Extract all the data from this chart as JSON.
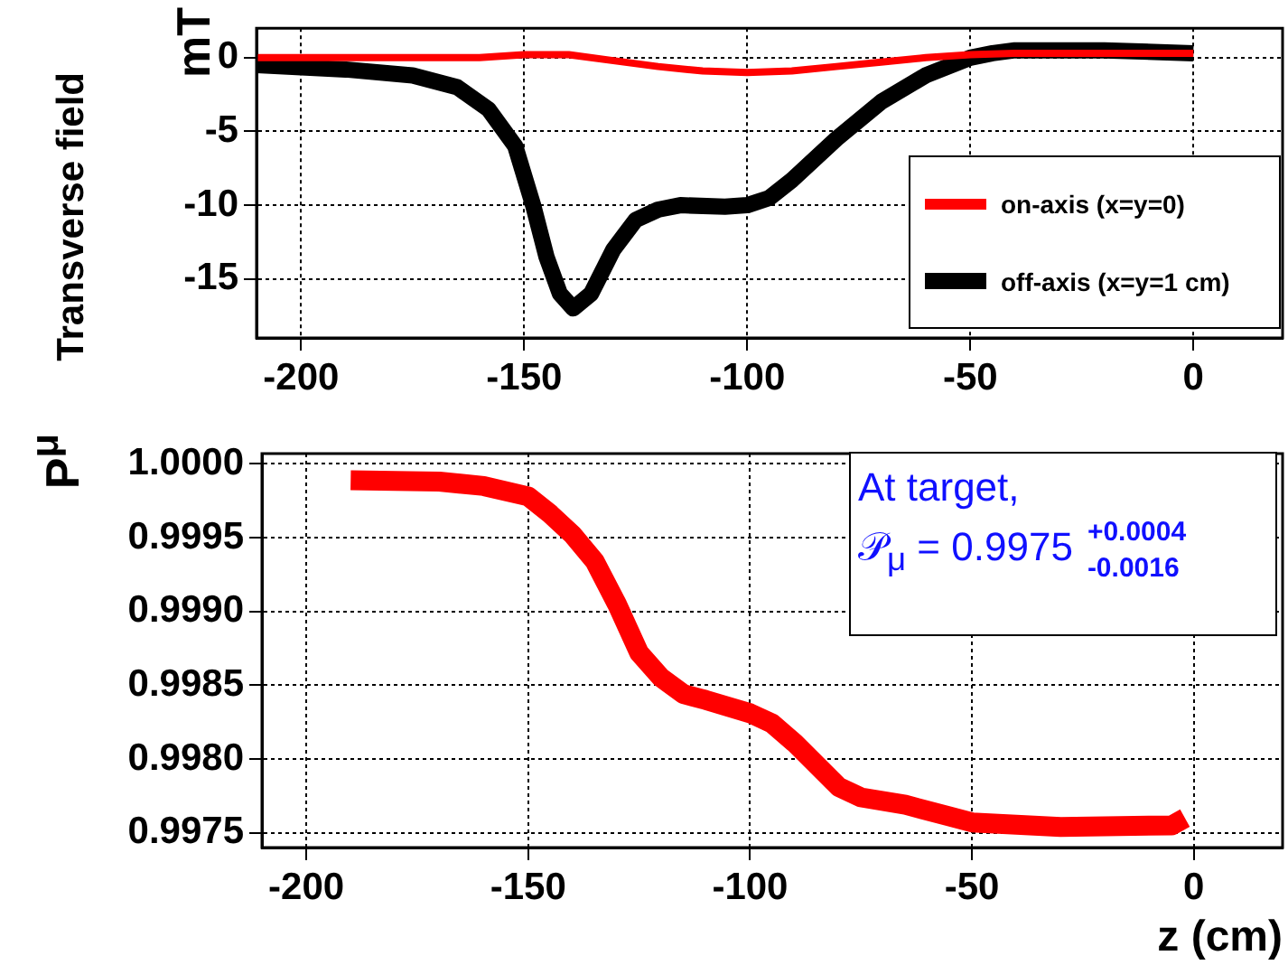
{
  "chart_data": [
    {
      "type": "line",
      "ylabel": "mT",
      "annotations": [
        "Transverse field"
      ],
      "xlim": [
        -210,
        20
      ],
      "ylim": [
        -19,
        2
      ],
      "xticks": [
        -200,
        -150,
        -100,
        -50,
        0
      ],
      "yticks": [
        0,
        -5,
        -10,
        -15
      ],
      "grid": true,
      "legend": "bottom right",
      "marker": "none",
      "line_style": "solid",
      "series": [
        {
          "name": "on-axis (x=y=0)",
          "color": "#ff0000",
          "x": [
            -210,
            -180,
            -160,
            -150,
            -140,
            -130,
            -120,
            -110,
            -100,
            -90,
            -80,
            -70,
            -60,
            -50,
            -40,
            -20,
            0
          ],
          "values": [
            0,
            0,
            0,
            0.2,
            0.2,
            -0.2,
            -0.6,
            -0.9,
            -1,
            -0.9,
            -0.6,
            -0.3,
            0,
            0.2,
            0.3,
            0.3,
            0.3
          ]
        },
        {
          "name": "off-axis (x=y=1 cm)",
          "color": "#000000",
          "x": [
            -210,
            -190,
            -175,
            -165,
            -158,
            -152,
            -148,
            -145,
            -142,
            -139,
            -135,
            -130,
            -125,
            -120,
            -115,
            -105,
            -100,
            -95,
            -90,
            -80,
            -70,
            -60,
            -50,
            -45,
            -40,
            -20,
            0
          ],
          "values": [
            -0.5,
            -0.8,
            -1.2,
            -2,
            -3.5,
            -6,
            -10,
            -13.5,
            -16,
            -17,
            -16,
            -13,
            -11,
            -10.3,
            -10,
            -10.1,
            -10,
            -9.5,
            -8.3,
            -5.5,
            -3,
            -1.2,
            0,
            0.3,
            0.5,
            0.5,
            0.3
          ]
        }
      ]
    },
    {
      "type": "line",
      "xlabel": "z (cm)",
      "ylabel": "P$^{μ}$",
      "annotations": [
        "At target,",
        "𝒫$_{μ}$ = 0.9975",
        "+0.0004",
        "-0.0016"
      ],
      "xlim": [
        -210,
        20
      ],
      "ylim": [
        0.9974,
        1.00007
      ],
      "xticks": [
        -200,
        -150,
        -100,
        -50,
        0
      ],
      "yticks": [
        {
          "value": 1,
          "label": "1.0000"
        },
        0.9995,
        {
          "value": 0.999,
          "label": "0.9990"
        },
        0.9985,
        {
          "value": 0.998,
          "label": "0.9980"
        },
        0.9975
      ],
      "grid": true,
      "marker": "none",
      "line_style": "solid",
      "series": [
        {
          "color": "#ff0000",
          "x": [
            -190,
            -170,
            -160,
            -150,
            -145,
            -140,
            -135,
            -130,
            -125,
            -120,
            -115,
            -110,
            -100,
            -95,
            -90,
            -85,
            -80,
            -75,
            -65,
            -55,
            -50,
            -30,
            -5,
            -2
          ],
          "values": [
            0.99989,
            0.99988,
            0.99985,
            0.99978,
            0.99966,
            0.99952,
            0.99934,
            0.99905,
            0.99872,
            0.99855,
            0.99844,
            0.9984,
            0.99831,
            0.99824,
            0.99811,
            0.99796,
            0.99781,
            0.99774,
            0.99769,
            0.99761,
            0.99757,
            0.99754,
            0.99755,
            0.9976
          ]
        }
      ]
    }
  ]
}
